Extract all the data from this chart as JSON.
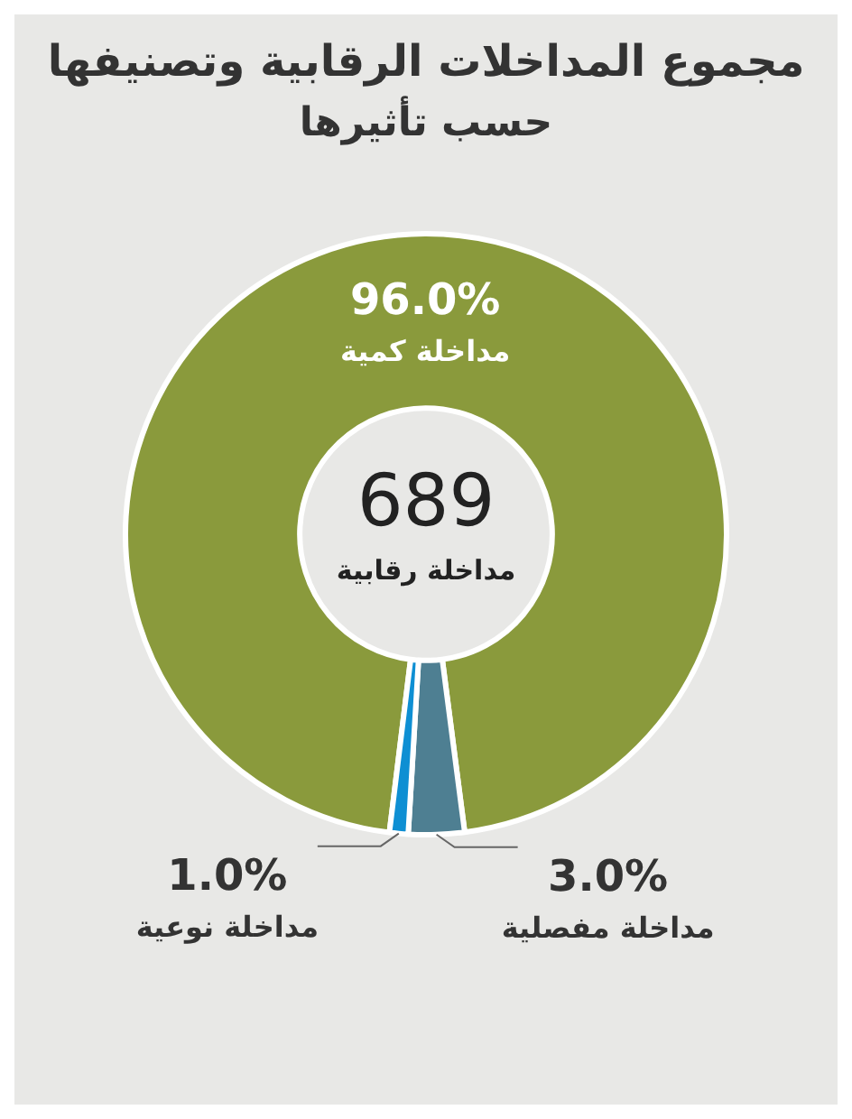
{
  "chart_data": {
    "type": "donut",
    "title": "مجموع المداخلات الرقابية وتصنيفها",
    "subtitle": "حسب تأثيرها",
    "categories": [
      "مداخلة كمية",
      "مداخلة مفصلية",
      "مداخلة نوعية"
    ],
    "values": [
      96,
      3,
      1
    ],
    "colors": [
      "#8a9a3c",
      "#4e7f92",
      "#0e8fd3"
    ],
    "value_labels": [
      "96.0%",
      "3.0%",
      "1.0%"
    ],
    "annotations": [
      "689",
      "مداخلة رقابية"
    ],
    "legend": false
  }
}
